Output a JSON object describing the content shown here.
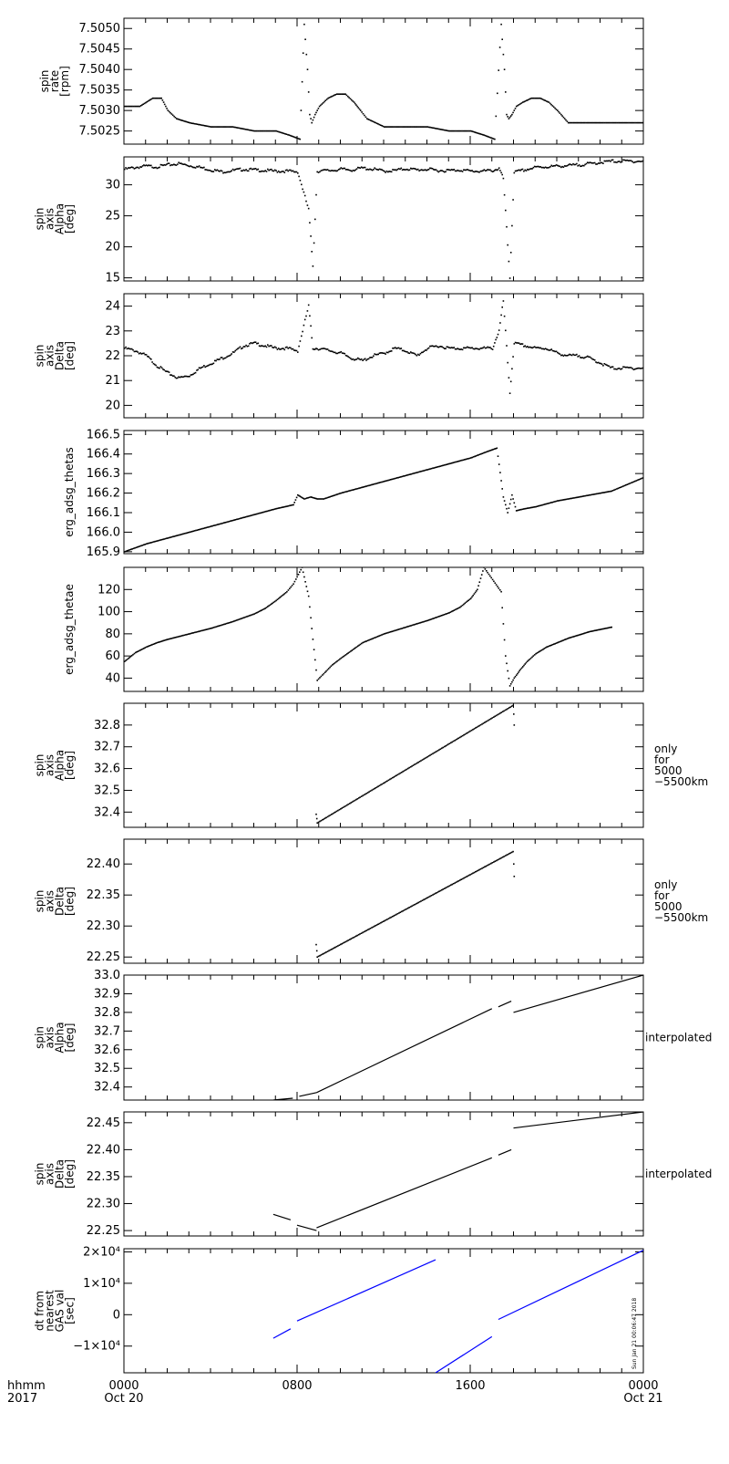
{
  "time_axis": {
    "ticks": [
      {
        "time": "0000",
        "date": "Oct 20"
      },
      {
        "time": "0800",
        "date": ""
      },
      {
        "time": "1600",
        "date": ""
      },
      {
        "time": "0000",
        "date": "Oct 21"
      }
    ],
    "corner_label_1": "hhmm",
    "corner_label_2": "2017",
    "range_hours": [
      0,
      24
    ]
  },
  "timestamp": "Sun Jan 21 00:06:47 2018",
  "chart_data": [
    {
      "type": "scatter",
      "ylabel": [
        "spin",
        "rate",
        "[rpm]"
      ],
      "right_label": [],
      "ylim": [
        7.50218,
        7.50525
      ],
      "ytick_values": [
        7.5025,
        7.503,
        7.5035,
        7.504,
        7.5045,
        7.505
      ],
      "ytick_labels": [
        "7.5025",
        "7.5030",
        "7.5035",
        "7.5040",
        "7.5045",
        "7.5050"
      ],
      "series": [
        {
          "color": "#000000",
          "x": [
            0.0,
            0.7,
            1.3,
            1.7,
            2.0,
            2.4,
            3.0,
            4.0,
            5.0,
            6.0,
            7.0,
            7.6,
            8.1,
            8.3,
            8.45,
            8.55,
            8.65,
            8.8,
            9.0,
            9.4,
            9.8,
            10.2,
            10.6,
            10.9,
            11.2,
            11.6,
            12.0,
            13.0,
            14.0,
            15.0,
            16.0,
            16.6,
            17.1,
            17.4,
            17.55,
            17.65,
            17.75,
            17.9,
            18.1,
            18.4,
            18.8,
            19.2,
            19.6,
            20.0,
            20.5,
            21.0,
            21.5,
            22.0,
            23.0,
            24.0
          ],
          "y": [
            7.5031,
            7.5031,
            7.5033,
            7.5033,
            7.503,
            7.5028,
            7.5027,
            7.5026,
            7.5026,
            7.5025,
            7.5025,
            7.5024,
            7.5023,
            7.5051,
            7.504,
            7.5029,
            7.5027,
            7.5029,
            7.5031,
            7.5033,
            7.5034,
            7.5034,
            7.5032,
            7.503,
            7.5028,
            7.5027,
            7.5026,
            7.5026,
            7.5026,
            7.5025,
            7.5025,
            7.5024,
            7.5023,
            7.5051,
            7.504,
            7.5029,
            7.5028,
            7.5029,
            7.5031,
            7.5032,
            7.5033,
            7.5033,
            7.5032,
            7.503,
            7.5027,
            7.5027,
            7.5027,
            7.5027,
            7.5027,
            7.5027
          ]
        }
      ]
    },
    {
      "type": "scatter",
      "ylabel": [
        "spin",
        "axis",
        "Alpha",
        "[deg]"
      ],
      "right_label": [],
      "ylim": [
        14.5,
        34.5
      ],
      "ytick_values": [
        15,
        20,
        25,
        30
      ],
      "ytick_labels": [
        "15",
        "20",
        "25",
        "30"
      ],
      "series": [
        {
          "color": "#000000",
          "x": [
            0.0,
            0.5,
            1.0,
            1.5,
            2.0,
            2.5,
            3.0,
            3.5,
            4.0,
            4.5,
            5.0,
            5.5,
            6.0,
            6.5,
            7.0,
            7.5,
            8.0,
            8.5,
            8.7,
            8.9,
            9.5,
            10.0,
            10.5,
            11.0,
            11.5,
            12.0,
            12.5,
            13.0,
            13.5,
            14.0,
            14.5,
            15.0,
            15.5,
            16.0,
            16.5,
            17.0,
            17.3,
            17.5,
            17.8,
            18.0,
            18.5,
            19.0,
            19.5,
            20.0,
            20.5,
            21.0,
            21.5,
            22.0,
            22.5,
            24.0
          ],
          "y": [
            32.5,
            32.8,
            33.0,
            32.9,
            33.2,
            33.4,
            33.1,
            32.8,
            32.4,
            32.1,
            32.3,
            32.5,
            32.4,
            32.3,
            32.2,
            32.2,
            32.1,
            26.0,
            17.0,
            32.2,
            32.3,
            32.5,
            32.4,
            32.7,
            32.5,
            32.2,
            32.3,
            32.6,
            32.4,
            32.5,
            32.3,
            32.3,
            32.4,
            32.2,
            32.2,
            32.3,
            32.6,
            31.0,
            15.0,
            32.0,
            32.4,
            32.8,
            32.9,
            33.0,
            33.1,
            33.2,
            33.4,
            33.6,
            33.8,
            33.8
          ]
        }
      ]
    },
    {
      "type": "scatter",
      "ylabel": [
        "spin",
        "axis",
        "Delta",
        "[deg]"
      ],
      "right_label": [],
      "ylim": [
        19.5,
        24.5
      ],
      "ytick_values": [
        20,
        21,
        22,
        23,
        24
      ],
      "ytick_labels": [
        "20",
        "21",
        "22",
        "23",
        "24"
      ],
      "series": [
        {
          "color": "#000000",
          "x": [
            0.0,
            0.5,
            1.0,
            1.5,
            2.0,
            2.5,
            3.0,
            3.5,
            4.0,
            4.5,
            5.0,
            5.5,
            6.0,
            6.5,
            7.0,
            7.5,
            8.0,
            8.5,
            8.7,
            8.9,
            9.5,
            10.0,
            10.5,
            11.0,
            11.5,
            12.0,
            12.5,
            13.0,
            13.5,
            14.0,
            14.5,
            15.0,
            15.5,
            16.0,
            16.5,
            17.0,
            17.3,
            17.5,
            17.8,
            18.0,
            18.5,
            19.0,
            19.5,
            20.0,
            20.5,
            21.0,
            21.5,
            22.0,
            22.5,
            24.0
          ],
          "y": [
            22.3,
            22.2,
            22.0,
            21.6,
            21.3,
            21.1,
            21.2,
            21.5,
            21.7,
            21.9,
            22.1,
            22.4,
            22.5,
            22.4,
            22.3,
            22.3,
            22.2,
            24.0,
            22.3,
            22.3,
            22.2,
            22.1,
            21.9,
            21.8,
            22.0,
            22.1,
            22.3,
            22.2,
            22.0,
            22.3,
            22.4,
            22.3,
            22.3,
            22.3,
            22.3,
            22.3,
            23.0,
            24.2,
            20.5,
            22.5,
            22.4,
            22.3,
            22.3,
            22.1,
            22.0,
            22.0,
            21.9,
            21.7,
            21.5,
            21.5
          ]
        }
      ]
    },
    {
      "type": "scatter",
      "ylabel": [
        "erg_adsg_thetas"
      ],
      "right_label": [],
      "ylim": [
        165.89,
        166.52
      ],
      "ytick_values": [
        165.9,
        166.0,
        166.1,
        166.2,
        166.3,
        166.4,
        166.5
      ],
      "ytick_labels": [
        "165.9",
        "166.0",
        "166.1",
        "166.2",
        "166.3",
        "166.4",
        "166.5"
      ],
      "series": [
        {
          "color": "#000000",
          "x": [
            0.0,
            1.0,
            2.0,
            3.0,
            4.0,
            5.0,
            6.0,
            7.0,
            7.8,
            8.0,
            8.3,
            8.6,
            8.9,
            9.2,
            10.0,
            11.0,
            12.0,
            13.0,
            14.0,
            15.0,
            16.0,
            16.7,
            17.2,
            17.5,
            17.7,
            17.9,
            18.1,
            18.5,
            19.0,
            20.0,
            21.0,
            22.0,
            22.5,
            24.0
          ],
          "y": [
            165.9,
            165.94,
            165.97,
            166.0,
            166.03,
            166.06,
            166.09,
            166.12,
            166.14,
            166.19,
            166.17,
            166.18,
            166.17,
            166.17,
            166.2,
            166.23,
            166.26,
            166.29,
            166.32,
            166.35,
            166.38,
            166.41,
            166.43,
            166.18,
            166.1,
            166.19,
            166.11,
            166.12,
            166.13,
            166.16,
            166.18,
            166.2,
            166.21,
            166.28
          ]
        }
      ]
    },
    {
      "type": "scatter",
      "ylabel": [
        "erg_adsg_thetae"
      ],
      "right_label": [],
      "ylim": [
        28,
        140
      ],
      "ytick_values": [
        40,
        60,
        80,
        100,
        120
      ],
      "ytick_labels": [
        "40",
        "60",
        "80",
        "100",
        "120"
      ],
      "series": [
        {
          "color": "#000000",
          "x": [
            0.0,
            0.5,
            1.0,
            1.5,
            2.0,
            3.0,
            4.0,
            5.0,
            6.0,
            6.5,
            7.0,
            7.5,
            7.8,
            8.2,
            8.5,
            8.7,
            8.9,
            9.2,
            9.6,
            10.0,
            10.5,
            11.0,
            12.0,
            13.0,
            14.0,
            15.0,
            15.5,
            16.0,
            16.3,
            16.6,
            17.4,
            17.6,
            17.8,
            18.0,
            18.3,
            18.6,
            19.0,
            19.5,
            20.0,
            20.5,
            21.0,
            21.5,
            22.0,
            22.5
          ],
          "y": [
            55,
            63,
            68,
            72,
            75,
            80,
            85,
            91,
            98,
            103,
            110,
            118,
            125,
            140,
            114,
            75,
            38,
            44,
            52,
            58,
            65,
            72,
            80,
            86,
            92,
            99,
            104,
            112,
            120,
            140,
            118,
            60,
            33,
            40,
            48,
            55,
            62,
            68,
            72,
            76,
            79,
            82,
            84,
            86
          ]
        }
      ]
    },
    {
      "type": "scatter",
      "ylabel": [
        "spin",
        "axis",
        "Alpha",
        "[deg]"
      ],
      "right_label": [
        "only",
        "for",
        "5000",
        "−5500km"
      ],
      "ylim": [
        32.33,
        32.9
      ],
      "ytick_values": [
        32.4,
        32.5,
        32.6,
        32.7,
        32.8
      ],
      "ytick_labels": [
        "32.4",
        "32.5",
        "32.6",
        "32.7",
        "32.8"
      ],
      "series": [
        {
          "color": "#000000",
          "x": [
            8.85,
            8.88,
            8.9,
            17.95,
            17.98,
            18.0
          ],
          "y": [
            32.39,
            32.37,
            32.35,
            32.89,
            32.85,
            32.8
          ]
        }
      ]
    },
    {
      "type": "scatter",
      "ylabel": [
        "spin",
        "axis",
        "Delta",
        "[deg]"
      ],
      "right_label": [
        "only",
        "for",
        "5000",
        "−5500km"
      ],
      "ylim": [
        22.24,
        22.44
      ],
      "ytick_values": [
        22.25,
        22.3,
        22.35,
        22.4
      ],
      "ytick_labels": [
        "22.25",
        "22.30",
        "22.35",
        "22.40"
      ],
      "series": [
        {
          "color": "#000000",
          "x": [
            8.85,
            8.88,
            8.9,
            17.95,
            17.98,
            18.0
          ],
          "y": [
            22.27,
            22.26,
            22.25,
            22.42,
            22.4,
            22.38
          ]
        }
      ]
    },
    {
      "type": "line",
      "ylabel": [
        "spin",
        "axis",
        "Alpha",
        "[deg]"
      ],
      "right_label": [
        "interpolated"
      ],
      "ylim": [
        32.33,
        33.0
      ],
      "ytick_values": [
        32.4,
        32.5,
        32.6,
        32.7,
        32.8,
        32.9,
        33.0
      ],
      "ytick_labels": [
        "32.4",
        "32.5",
        "32.6",
        "32.7",
        "32.8",
        "32.9",
        "33.0"
      ],
      "series": [
        {
          "color": "#000000",
          "segments": [
            {
              "x": [
                6.9,
                7.8
              ],
              "y": [
                32.33,
                32.34
              ]
            },
            {
              "x": [
                8.1,
                8.9
              ],
              "y": [
                32.35,
                32.37
              ]
            },
            {
              "x": [
                8.9,
                17.0
              ],
              "y": [
                32.37,
                32.82
              ]
            },
            {
              "x": [
                17.3,
                17.9
              ],
              "y": [
                32.83,
                32.86
              ]
            },
            {
              "x": [
                18.0,
                24.0
              ],
              "y": [
                32.8,
                33.0
              ]
            }
          ]
        }
      ]
    },
    {
      "type": "line",
      "ylabel": [
        "spin",
        "axis",
        "Delta",
        "[deg]"
      ],
      "right_label": [
        "interpolated"
      ],
      "ylim": [
        22.24,
        22.47
      ],
      "ytick_values": [
        22.25,
        22.3,
        22.35,
        22.4,
        22.45
      ],
      "ytick_labels": [
        "22.25",
        "22.30",
        "22.35",
        "22.40",
        "22.45"
      ],
      "series": [
        {
          "color": "#000000",
          "segments": [
            {
              "x": [
                6.9,
                7.7
              ],
              "y": [
                22.28,
                22.27
              ]
            },
            {
              "x": [
                8.0,
                8.9
              ],
              "y": [
                22.26,
                22.25
              ]
            },
            {
              "x": [
                8.9,
                17.0
              ],
              "y": [
                22.255,
                22.385
              ]
            },
            {
              "x": [
                17.3,
                17.9
              ],
              "y": [
                22.39,
                22.4
              ]
            },
            {
              "x": [
                18.0,
                24.0
              ],
              "y": [
                22.44,
                22.47
              ]
            }
          ]
        }
      ]
    },
    {
      "type": "line",
      "ylabel": [
        "dt from",
        "nearest",
        "GAS val",
        "[sec]"
      ],
      "right_label": [],
      "ylim": [
        -18500,
        21000
      ],
      "ytick_values": [
        -10000,
        0,
        10000,
        20000
      ],
      "ytick_labels": [
        "−1×10⁴",
        "0",
        "1×10⁴",
        "2×10⁴"
      ],
      "series": [
        {
          "color": "#0000ff",
          "segments": [
            {
              "x": [
                6.9,
                7.7
              ],
              "y": [
                -7500,
                -4500
              ]
            },
            {
              "x": [
                8.0,
                14.4
              ],
              "y": [
                -2000,
                17500
              ]
            },
            {
              "x": [
                14.4,
                17.0
              ],
              "y": [
                -18500,
                -7000
              ]
            },
            {
              "x": [
                17.3,
                24.0
              ],
              "y": [
                -1500,
                20500
              ]
            }
          ]
        }
      ]
    }
  ]
}
